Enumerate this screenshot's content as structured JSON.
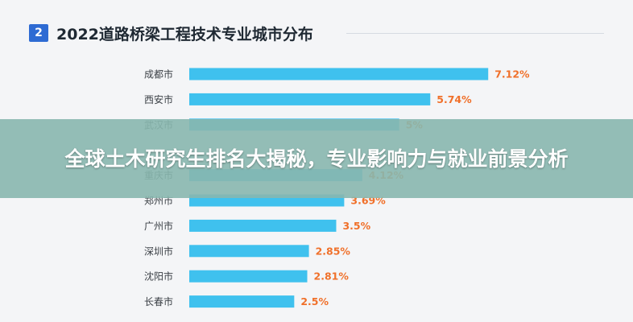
{
  "header": {
    "badge": "2",
    "title": "2022道路桥梁工程技术专业城市分布"
  },
  "overlay": {
    "headline": "全球土木研究生排名大揭秘，专业影响力与就业前景分析"
  },
  "colors": {
    "bar": "#3fc1ee",
    "value_label": "#f0702a",
    "category_label": "#3a3f45",
    "badge": "#2e6bd3",
    "overlay": "#88b7ae"
  },
  "chart_data": {
    "type": "bar",
    "orientation": "horizontal",
    "title": "2022道路桥梁工程技术专业城市分布",
    "categories": [
      "成都市",
      "西安市",
      "武汉市",
      "",
      "重庆市",
      "郑州市",
      "广州市",
      "深圳市",
      "沈阳市",
      "长春市"
    ],
    "values": [
      7.12,
      5.74,
      5.0,
      null,
      4.12,
      3.69,
      3.5,
      2.85,
      2.81,
      2.5
    ],
    "value_labels": [
      "7.12%",
      "5.74%",
      "5%",
      "",
      "4.12%",
      "3.69%",
      "3.5%",
      "2.85%",
      "2.81%",
      "2.5%"
    ],
    "xlabel": "",
    "ylabel": "",
    "xlim": [
      0,
      7.25
    ],
    "grid": false,
    "legend": "none"
  }
}
